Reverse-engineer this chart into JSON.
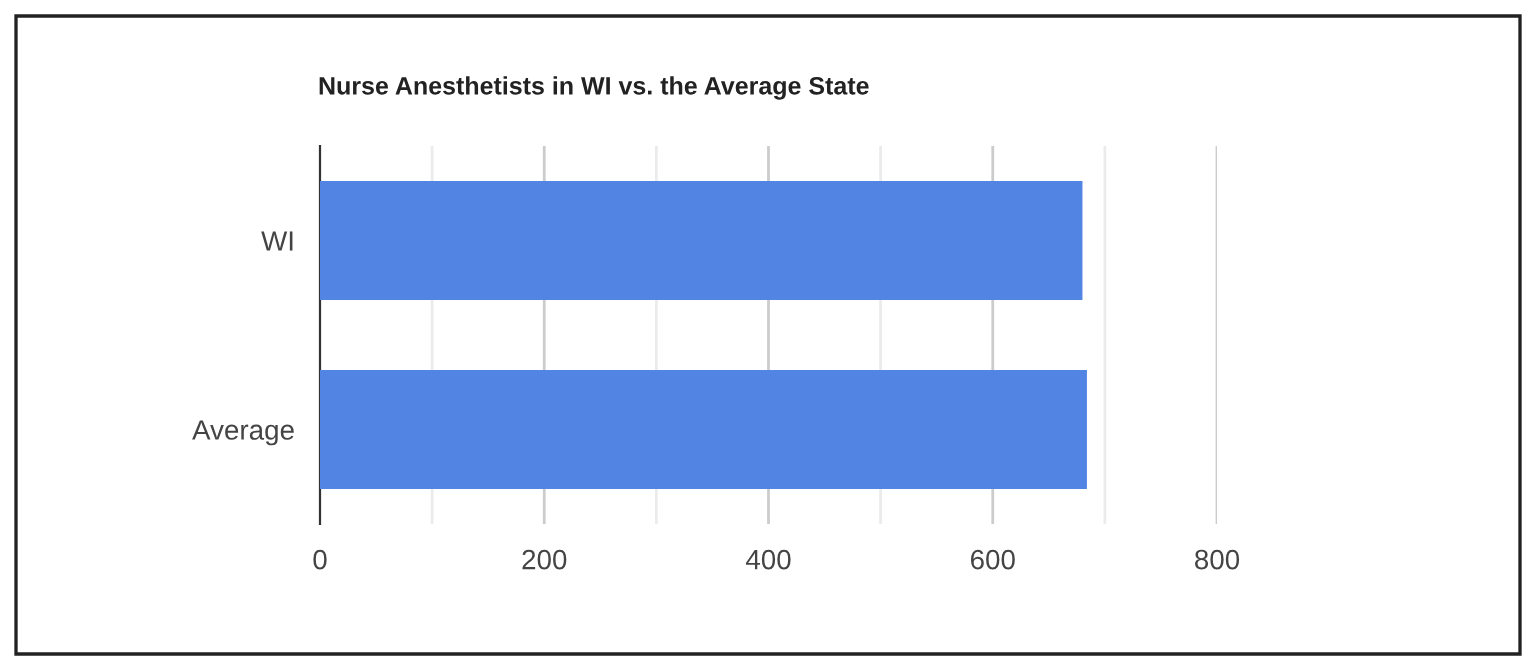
{
  "chart_data": {
    "type": "bar",
    "orientation": "horizontal",
    "title": "Nurse Anesthetists in WI vs. the Average State",
    "categories": [
      "WI",
      "Average"
    ],
    "series": [
      {
        "color": "#5284e3",
        "values": [
          680,
          684
        ]
      }
    ],
    "xlim": [
      0,
      800
    ],
    "xticks": [
      0,
      {
        "value": 100,
        "label": null
      },
      200,
      {
        "value": 300,
        "label": null
      },
      400,
      {
        "value": 500,
        "label": null
      },
      600,
      {
        "value": 700,
        "label": null
      },
      800
    ],
    "grid": "x",
    "legend": false
  }
}
